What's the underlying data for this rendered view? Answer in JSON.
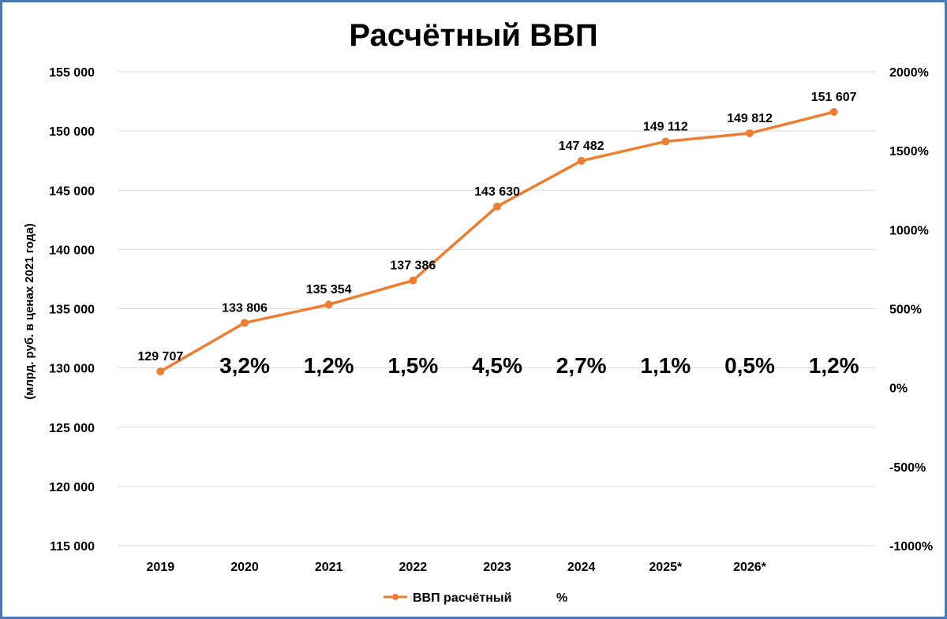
{
  "chart_data": {
    "type": "line",
    "title": "Расчётный ВВП",
    "ylabel": "(млрд. руб. в ценах 2021 года)",
    "x": [
      "2019",
      "2020",
      "2021",
      "2022",
      "2023",
      "2024",
      "2025*",
      "2026*",
      ""
    ],
    "series": [
      {
        "name": "ВВП расчётный",
        "color": "#ed7d31",
        "values": [
          129707,
          133806,
          135354,
          137386,
          143630,
          147482,
          149112,
          149812,
          151607
        ],
        "labels": [
          "129 707",
          "133 806",
          "135 354",
          "137 386",
          "143 630",
          "147 482",
          "149 112",
          "149 812",
          "151 607"
        ]
      },
      {
        "name": "%",
        "axis": "secondary",
        "labels": [
          "",
          "3,2%",
          "1,2%",
          "1,5%",
          "4,5%",
          "2,7%",
          "1,1%",
          "0,5%",
          "1,2%"
        ]
      }
    ],
    "ylim": [
      115000,
      155000
    ],
    "y_ticks": [
      115000,
      120000,
      125000,
      130000,
      135000,
      140000,
      145000,
      150000,
      155000
    ],
    "y_tick_labels": [
      "115 000",
      "120 000",
      "125 000",
      "130 000",
      "135 000",
      "140 000",
      "145 000",
      "150 000",
      "155 000"
    ],
    "y2lim": [
      -1000,
      2000
    ],
    "y2_ticks": [
      -1000,
      -500,
      0,
      500,
      1000,
      1500,
      2000
    ],
    "y2_tick_labels": [
      "-1000%",
      "-500%",
      "0%",
      "500%",
      "1000%",
      "1500%",
      "2000%"
    ],
    "grid": true,
    "legend_position": "bottom"
  }
}
